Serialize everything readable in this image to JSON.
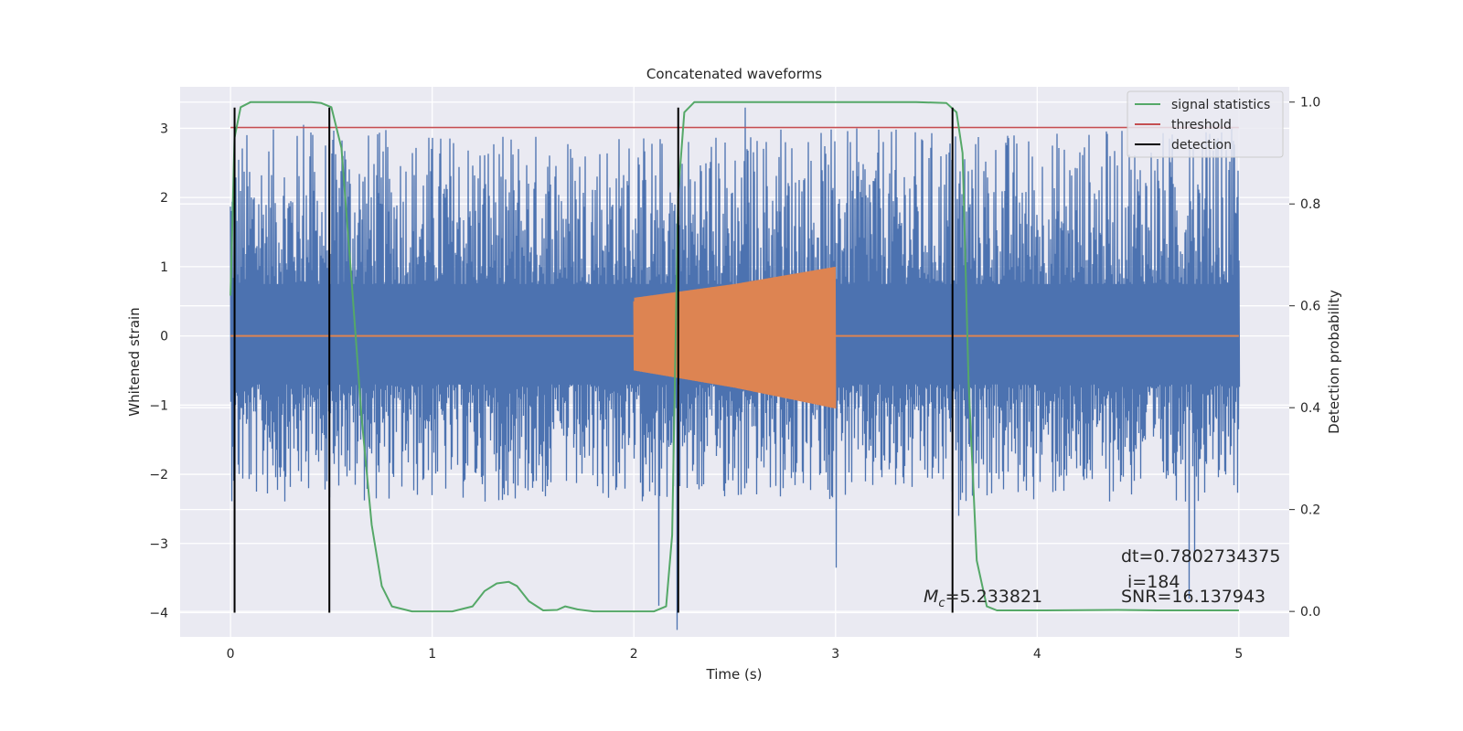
{
  "chart_data": {
    "type": "line",
    "title": "Concatenated waveforms",
    "xlabel": "Time (s)",
    "ylabel": "Whitened strain",
    "y2label": "Detection probability",
    "xlim": [
      -0.25,
      5.25
    ],
    "ylim": [
      -4.35,
      3.6
    ],
    "y2lim": [
      -0.05,
      1.03
    ],
    "xticks": [
      0,
      1,
      2,
      3,
      4,
      5
    ],
    "xtick_labels": [
      "0",
      "1",
      "2",
      "3",
      "4",
      "5"
    ],
    "yticks": [
      3,
      2,
      1,
      0,
      -1,
      -2,
      -3,
      -4
    ],
    "ytick_labels": [
      "3",
      "2",
      "1",
      "0",
      "−1",
      "−2",
      "−3",
      "−4"
    ],
    "y2ticks": [
      1.0,
      0.8,
      0.6,
      0.4,
      0.2,
      0.0
    ],
    "y2tick_labels": [
      "1.0",
      "0.8",
      "0.6",
      "0.4",
      "0.2",
      "0.0"
    ],
    "grid": true,
    "legend_position": "top-right",
    "series": [
      {
        "kind": "noisy strain",
        "color": "#4c72b0",
        "x_range": [
          0,
          5
        ],
        "band_min": -2.4,
        "band_max": 3.3,
        "envelope_peaks": [
          [
            0.36,
            3.05
          ],
          [
            0.57,
            2.55
          ],
          [
            1.34,
            2.3
          ],
          [
            2.12,
            -3.9
          ],
          [
            2.21,
            -4.25
          ],
          [
            2.55,
            3.3
          ],
          [
            2.73,
            2.98
          ],
          [
            3.0,
            -3.35
          ],
          [
            3.57,
            2.78
          ],
          [
            3.61,
            -2.6
          ],
          [
            4.75,
            -3.8
          ],
          [
            4.78,
            -3.15
          ],
          [
            4.84,
            2.6
          ]
        ]
      },
      {
        "kind": "injected chirp",
        "color": "#dd8452",
        "x": [
          0,
          2,
          2,
          2.5,
          3,
          3,
          5
        ],
        "y_upper": [
          0,
          0,
          0.55,
          0.75,
          1.0,
          0,
          0
        ],
        "y_lower": [
          0,
          0,
          -0.5,
          -0.75,
          -1.05,
          0,
          0
        ]
      },
      {
        "name": "signal statistics",
        "axis": "right",
        "color": "#55a868",
        "x": [
          0,
          0.02,
          0.05,
          0.1,
          0.2,
          0.3,
          0.4,
          0.45,
          0.5,
          0.55,
          0.6,
          0.65,
          0.7,
          0.75,
          0.8,
          0.9,
          1.0,
          1.1,
          1.2,
          1.26,
          1.32,
          1.38,
          1.42,
          1.48,
          1.55,
          1.62,
          1.66,
          1.72,
          1.8,
          2.0,
          2.1,
          2.16,
          2.19,
          2.22,
          2.25,
          2.3,
          2.4,
          2.8,
          3.4,
          3.55,
          3.6,
          3.63,
          3.66,
          3.7,
          3.75,
          3.8,
          4.0,
          4.4,
          4.6,
          5.0
        ],
        "y": [
          0.62,
          0.93,
          0.99,
          1.0,
          1.0,
          1.0,
          1.0,
          0.998,
          0.99,
          0.91,
          0.65,
          0.38,
          0.17,
          0.05,
          0.01,
          0.0,
          0.0,
          0.0,
          0.01,
          0.04,
          0.055,
          0.058,
          0.05,
          0.02,
          0.002,
          0.003,
          0.01,
          0.004,
          0.0,
          0.0,
          0.0,
          0.01,
          0.15,
          0.82,
          0.98,
          1.0,
          1.0,
          1.0,
          1.0,
          0.998,
          0.98,
          0.9,
          0.45,
          0.1,
          0.01,
          0.002,
          0.002,
          0.003,
          0.002,
          0.002
        ]
      },
      {
        "name": "threshold",
        "axis": "right",
        "color": "#c44e52",
        "x": [
          0,
          5
        ],
        "y": [
          0.95,
          0.95
        ]
      }
    ],
    "detections": {
      "name": "detection",
      "color": "#000000",
      "x": [
        0.02,
        0.49,
        2.22,
        3.58
      ],
      "y_range": [
        -4.0,
        3.3
      ]
    },
    "legend": [
      {
        "label": "signal statistics",
        "color": "#55a868"
      },
      {
        "label": "threshold",
        "color": "#c44e52"
      },
      {
        "label": "detection",
        "color": "#000000"
      }
    ],
    "annotations": {
      "mc_symbol": "M",
      "mc_subscript": "c",
      "mc_value": "=5.233821",
      "dt": "dt=0.7802734375",
      "index": "i=184",
      "snr": "SNR=16.137943"
    }
  },
  "colors": {
    "axes_background": "#eaeaf2",
    "grid": "#ffffff"
  }
}
